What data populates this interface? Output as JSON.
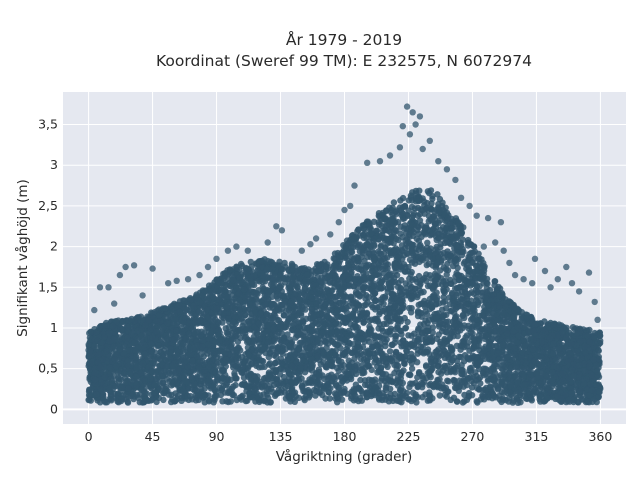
{
  "chart_data": {
    "type": "scatter",
    "title_line1": "År 1979 - 2019",
    "title_line2": "Koordinat (Sweref 99 TM): E 232575, N 6072974",
    "xlabel": "Vågriktning (grader)",
    "ylabel": "Signifikant våghöjd (m)",
    "xlim": [
      -18,
      378
    ],
    "ylim": [
      -0.18,
      3.9
    ],
    "xticks": [
      0,
      45,
      90,
      135,
      180,
      225,
      270,
      315,
      360
    ],
    "xtick_labels": [
      "0",
      "45",
      "90",
      "135",
      "180",
      "225",
      "270",
      "315",
      "360"
    ],
    "yticks": [
      0,
      0.5,
      1,
      1.5,
      2,
      2.5,
      3,
      3.5
    ],
    "ytick_labels": [
      "0",
      "0,5",
      "1",
      "1,5",
      "2",
      "2,5",
      "3",
      "3,5"
    ],
    "grid": true,
    "background": "#e5e8f0",
    "marker_color": "#31566d",
    "envelope_upper": [
      {
        "x": 0,
        "y": 0.95
      },
      {
        "x": 10,
        "y": 1.05
      },
      {
        "x": 20,
        "y": 1.1
      },
      {
        "x": 30,
        "y": 1.12
      },
      {
        "x": 45,
        "y": 1.2
      },
      {
        "x": 60,
        "y": 1.3
      },
      {
        "x": 75,
        "y": 1.4
      },
      {
        "x": 90,
        "y": 1.6
      },
      {
        "x": 100,
        "y": 1.75
      },
      {
        "x": 110,
        "y": 1.8
      },
      {
        "x": 125,
        "y": 1.85
      },
      {
        "x": 140,
        "y": 1.8
      },
      {
        "x": 155,
        "y": 1.75
      },
      {
        "x": 170,
        "y": 1.85
      },
      {
        "x": 180,
        "y": 2.05
      },
      {
        "x": 195,
        "y": 2.3
      },
      {
        "x": 210,
        "y": 2.5
      },
      {
        "x": 225,
        "y": 2.65
      },
      {
        "x": 235,
        "y": 2.75
      },
      {
        "x": 245,
        "y": 2.65
      },
      {
        "x": 255,
        "y": 2.45
      },
      {
        "x": 265,
        "y": 2.2
      },
      {
        "x": 275,
        "y": 1.9
      },
      {
        "x": 285,
        "y": 1.6
      },
      {
        "x": 295,
        "y": 1.35
      },
      {
        "x": 305,
        "y": 1.2
      },
      {
        "x": 315,
        "y": 1.1
      },
      {
        "x": 330,
        "y": 1.05
      },
      {
        "x": 345,
        "y": 1.0
      },
      {
        "x": 360,
        "y": 0.95
      }
    ],
    "envelope_lower": [
      {
        "x": 0,
        "y": 0.08
      },
      {
        "x": 360,
        "y": 0.08
      }
    ],
    "outliers": [
      {
        "x": 224,
        "y": 3.72
      },
      {
        "x": 228,
        "y": 3.65
      },
      {
        "x": 233,
        "y": 3.6
      },
      {
        "x": 221,
        "y": 3.48
      },
      {
        "x": 230,
        "y": 3.5
      },
      {
        "x": 226,
        "y": 3.38
      },
      {
        "x": 240,
        "y": 3.3
      },
      {
        "x": 235,
        "y": 3.2
      },
      {
        "x": 219,
        "y": 3.22
      },
      {
        "x": 246,
        "y": 3.05
      },
      {
        "x": 212,
        "y": 3.12
      },
      {
        "x": 205,
        "y": 3.05
      },
      {
        "x": 196,
        "y": 3.03
      },
      {
        "x": 252,
        "y": 2.95
      },
      {
        "x": 258,
        "y": 2.82
      },
      {
        "x": 262,
        "y": 2.6
      },
      {
        "x": 268,
        "y": 2.5
      },
      {
        "x": 273,
        "y": 2.38
      },
      {
        "x": 281,
        "y": 2.35
      },
      {
        "x": 290,
        "y": 2.3
      },
      {
        "x": 286,
        "y": 2.05
      },
      {
        "x": 278,
        "y": 2.0
      },
      {
        "x": 187,
        "y": 2.75
      },
      {
        "x": 184,
        "y": 2.5
      },
      {
        "x": 180,
        "y": 2.45
      },
      {
        "x": 176,
        "y": 2.3
      },
      {
        "x": 170,
        "y": 2.15
      },
      {
        "x": 160,
        "y": 2.1
      },
      {
        "x": 156,
        "y": 2.03
      },
      {
        "x": 150,
        "y": 1.95
      },
      {
        "x": 132,
        "y": 2.25
      },
      {
        "x": 136,
        "y": 2.2
      },
      {
        "x": 126,
        "y": 2.05
      },
      {
        "x": 112,
        "y": 1.95
      },
      {
        "x": 104,
        "y": 2.0
      },
      {
        "x": 98,
        "y": 1.95
      },
      {
        "x": 90,
        "y": 1.85
      },
      {
        "x": 84,
        "y": 1.75
      },
      {
        "x": 78,
        "y": 1.65
      },
      {
        "x": 70,
        "y": 1.6
      },
      {
        "x": 62,
        "y": 1.58
      },
      {
        "x": 56,
        "y": 1.55
      },
      {
        "x": 45,
        "y": 1.73
      },
      {
        "x": 32,
        "y": 1.77
      },
      {
        "x": 26,
        "y": 1.75
      },
      {
        "x": 22,
        "y": 1.65
      },
      {
        "x": 14,
        "y": 1.5
      },
      {
        "x": 8,
        "y": 1.5
      },
      {
        "x": 4,
        "y": 1.22
      },
      {
        "x": 18,
        "y": 1.3
      },
      {
        "x": 38,
        "y": 1.4
      },
      {
        "x": 300,
        "y": 1.65
      },
      {
        "x": 306,
        "y": 1.6
      },
      {
        "x": 312,
        "y": 1.55
      },
      {
        "x": 314,
        "y": 1.85
      },
      {
        "x": 321,
        "y": 1.7
      },
      {
        "x": 330,
        "y": 1.6
      },
      {
        "x": 336,
        "y": 1.75
      },
      {
        "x": 340,
        "y": 1.55
      },
      {
        "x": 345,
        "y": 1.45
      },
      {
        "x": 352,
        "y": 1.68
      },
      {
        "x": 356,
        "y": 1.32
      },
      {
        "x": 358,
        "y": 1.1
      },
      {
        "x": 325,
        "y": 1.5
      },
      {
        "x": 292,
        "y": 1.95
      },
      {
        "x": 296,
        "y": 1.8
      }
    ],
    "fill_points": 7000,
    "fill_seed": 12345
  }
}
